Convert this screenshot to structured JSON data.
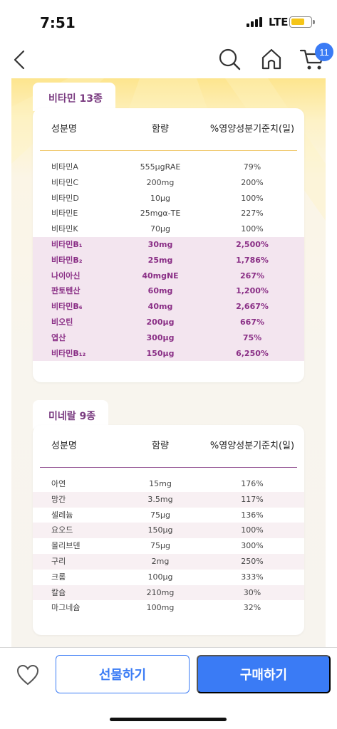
{
  "status": {
    "time": "7:51",
    "network": "LTE"
  },
  "nav": {
    "cart_count": "11"
  },
  "vitamins": {
    "tab": "비타민 13종",
    "headers": [
      "성분명",
      "함량",
      "%영양성분기준치(일)"
    ],
    "rows": [
      {
        "name": "비타민A",
        "amount": "555μgRAE",
        "pct": "79%",
        "hl": false
      },
      {
        "name": "비타민C",
        "amount": "200mg",
        "pct": "200%",
        "hl": false
      },
      {
        "name": "비타민D",
        "amount": "10μg",
        "pct": "100%",
        "hl": false
      },
      {
        "name": "비타민E",
        "amount": "25mgα-TE",
        "pct": "227%",
        "hl": false
      },
      {
        "name": "비타민K",
        "amount": "70μg",
        "pct": "100%",
        "hl": false
      },
      {
        "name": "비타민B₁",
        "amount": "30mg",
        "pct": "2,500%",
        "hl": true
      },
      {
        "name": "비타민B₂",
        "amount": "25mg",
        "pct": "1,786%",
        "hl": true
      },
      {
        "name": "나이아신",
        "amount": "40mgNE",
        "pct": "267%",
        "hl": true
      },
      {
        "name": "판토텐산",
        "amount": "60mg",
        "pct": "1,200%",
        "hl": true
      },
      {
        "name": "비타민B₆",
        "amount": "40mg",
        "pct": "2,667%",
        "hl": true
      },
      {
        "name": "비오틴",
        "amount": "200μg",
        "pct": "667%",
        "hl": true
      },
      {
        "name": "엽산",
        "amount": "300μg",
        "pct": "75%",
        "hl": true
      },
      {
        "name": "비타민B₁₂",
        "amount": "150μg",
        "pct": "6,250%",
        "hl": true
      }
    ]
  },
  "minerals": {
    "tab": "미네랄 9종",
    "headers": [
      "성분명",
      "함량",
      "%영양성분기준치(일)"
    ],
    "rows": [
      {
        "name": "아연",
        "amount": "15mg",
        "pct": "176%"
      },
      {
        "name": "망간",
        "amount": "3.5mg",
        "pct": "117%"
      },
      {
        "name": "셀레늄",
        "amount": "75μg",
        "pct": "136%"
      },
      {
        "name": "요오드",
        "amount": "150μg",
        "pct": "100%"
      },
      {
        "name": "몰리브덴",
        "amount": "75μg",
        "pct": "300%"
      },
      {
        "name": "구리",
        "amount": "2mg",
        "pct": "250%"
      },
      {
        "name": "크롬",
        "amount": "100μg",
        "pct": "333%"
      },
      {
        "name": "칼슘",
        "amount": "210mg",
        "pct": "30%"
      },
      {
        "name": "마그네슘",
        "amount": "100mg",
        "pct": "32%"
      }
    ]
  },
  "bottom": {
    "gift_label": "선물하기",
    "buy_label": "구매하기"
  },
  "colors": {
    "accent": "#3a7bf5",
    "purple": "#7a3b80",
    "highlight_bg": "#f3e5ef"
  },
  "icons": [
    "back-icon",
    "search-icon",
    "home-icon",
    "cart-icon",
    "heart-icon"
  ]
}
